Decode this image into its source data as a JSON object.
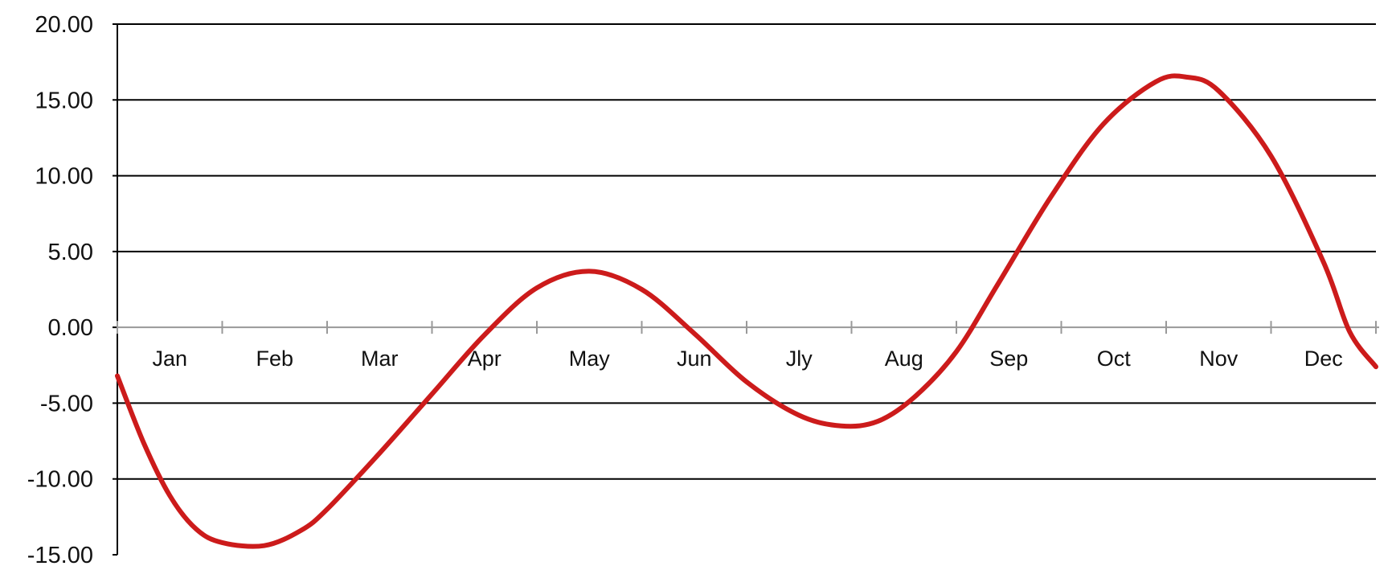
{
  "chart_data": {
    "type": "line",
    "title": "",
    "xlabel": "",
    "ylabel": "",
    "categories": [
      "Jan",
      "Feb",
      "Mar",
      "Apr",
      "May",
      "Jun",
      "Jly",
      "Aug",
      "Sep",
      "Oct",
      "Nov",
      "Dec"
    ],
    "yticks": [
      "-15.00",
      "-10.00",
      "-5.00",
      "0.00",
      "5.00",
      "10.00",
      "15.00",
      "20.00"
    ],
    "ylim": [
      -15,
      20
    ],
    "xlim": [
      0,
      12
    ],
    "grid": "horizontal",
    "legend": "none",
    "series": [
      {
        "color": "#cc1b1b",
        "points": [
          {
            "x": 0.0,
            "y": -3.2
          },
          {
            "x": 0.25,
            "y": -7.6
          },
          {
            "x": 0.5,
            "y": -11.1
          },
          {
            "x": 0.75,
            "y": -13.3
          },
          {
            "x": 1.0,
            "y": -14.2
          },
          {
            "x": 1.4,
            "y": -14.4
          },
          {
            "x": 1.75,
            "y": -13.4
          },
          {
            "x": 2.0,
            "y": -12.0
          },
          {
            "x": 2.5,
            "y": -8.3
          },
          {
            "x": 3.0,
            "y": -4.4
          },
          {
            "x": 3.5,
            "y": -0.5
          },
          {
            "x": 4.0,
            "y": 2.6
          },
          {
            "x": 4.5,
            "y": 3.7
          },
          {
            "x": 5.0,
            "y": 2.5
          },
          {
            "x": 5.5,
            "y": -0.4
          },
          {
            "x": 6.0,
            "y": -3.6
          },
          {
            "x": 6.5,
            "y": -5.8
          },
          {
            "x": 6.9,
            "y": -6.5
          },
          {
            "x": 7.25,
            "y": -6.2
          },
          {
            "x": 7.6,
            "y": -4.6
          },
          {
            "x": 8.0,
            "y": -1.6
          },
          {
            "x": 8.4,
            "y": 2.9
          },
          {
            "x": 8.9,
            "y": 8.6
          },
          {
            "x": 9.4,
            "y": 13.4
          },
          {
            "x": 9.9,
            "y": 16.2
          },
          {
            "x": 10.2,
            "y": 16.5
          },
          {
            "x": 10.5,
            "y": 15.6
          },
          {
            "x": 11.0,
            "y": 11.3
          },
          {
            "x": 11.5,
            "y": 4.3
          },
          {
            "x": 11.75,
            "y": -0.3
          },
          {
            "x": 12.0,
            "y": -2.6
          }
        ]
      }
    ]
  },
  "colors": {
    "line": "#cc1b1b",
    "grid": "#000000",
    "zero_axis": "#999999",
    "text": "#111111",
    "background": "#ffffff"
  }
}
